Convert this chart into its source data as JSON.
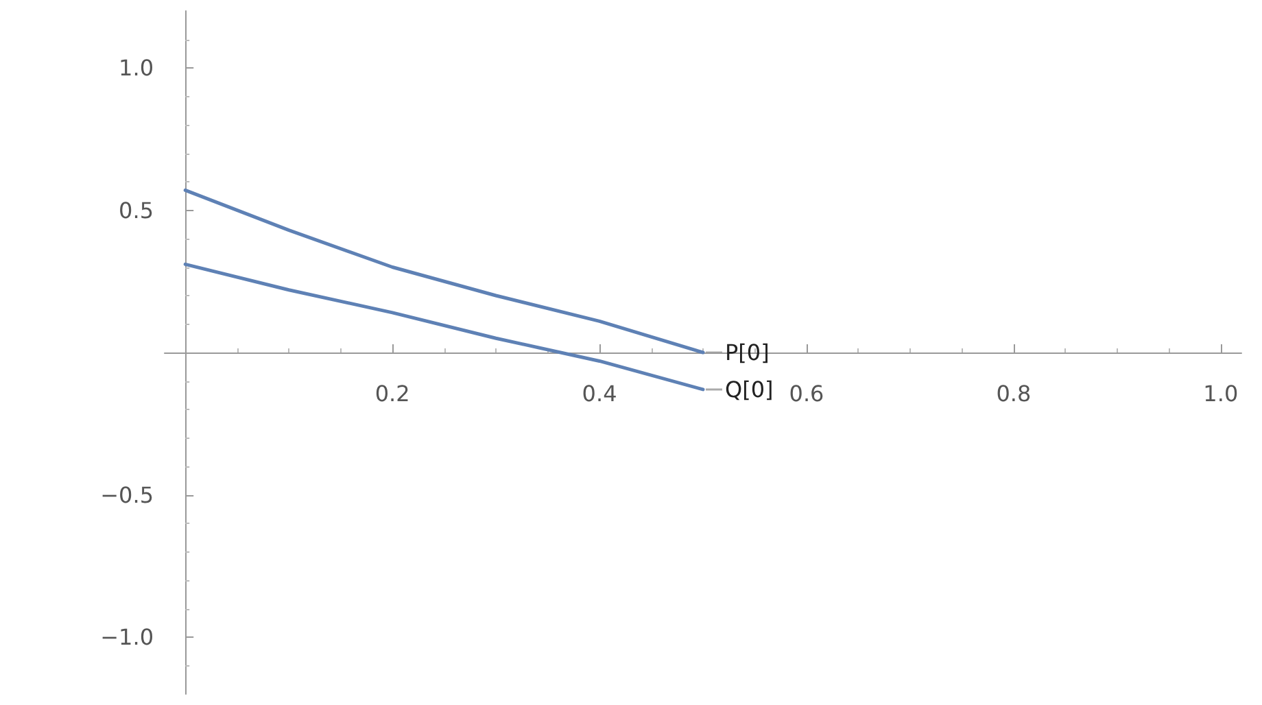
{
  "chart_data": {
    "type": "line",
    "xlim": [
      -0.02,
      1.02
    ],
    "xticks": [
      0.2,
      0.4,
      0.6,
      0.8,
      {
        "value": 1,
        "label": "1.0"
      }
    ],
    "ylim": [
      -1.2,
      1.2
    ],
    "yticks": [
      {
        "value": -1,
        "label": "−1.0"
      },
      {
        "value": -0.5,
        "label": "−0.5"
      },
      0.5,
      {
        "value": 1,
        "label": "1.0"
      }
    ],
    "grid": false,
    "marker": "none",
    "line_style": "solid",
    "series": [
      {
        "name": "P[0]",
        "color": "#5e81b5",
        "x": [
          0,
          0.1,
          0.2,
          0.3,
          0.4,
          0.5
        ],
        "values": [
          0.57,
          0.43,
          0.3,
          0.2,
          0.11,
          0
        ]
      },
      {
        "name": "Q[0]",
        "color": "#5e81b5",
        "x": [
          0,
          0.1,
          0.2,
          0.3,
          0.4,
          0.5
        ],
        "values": [
          0.31,
          0.22,
          0.14,
          0.05,
          -0.03,
          -0.13
        ]
      }
    ]
  }
}
